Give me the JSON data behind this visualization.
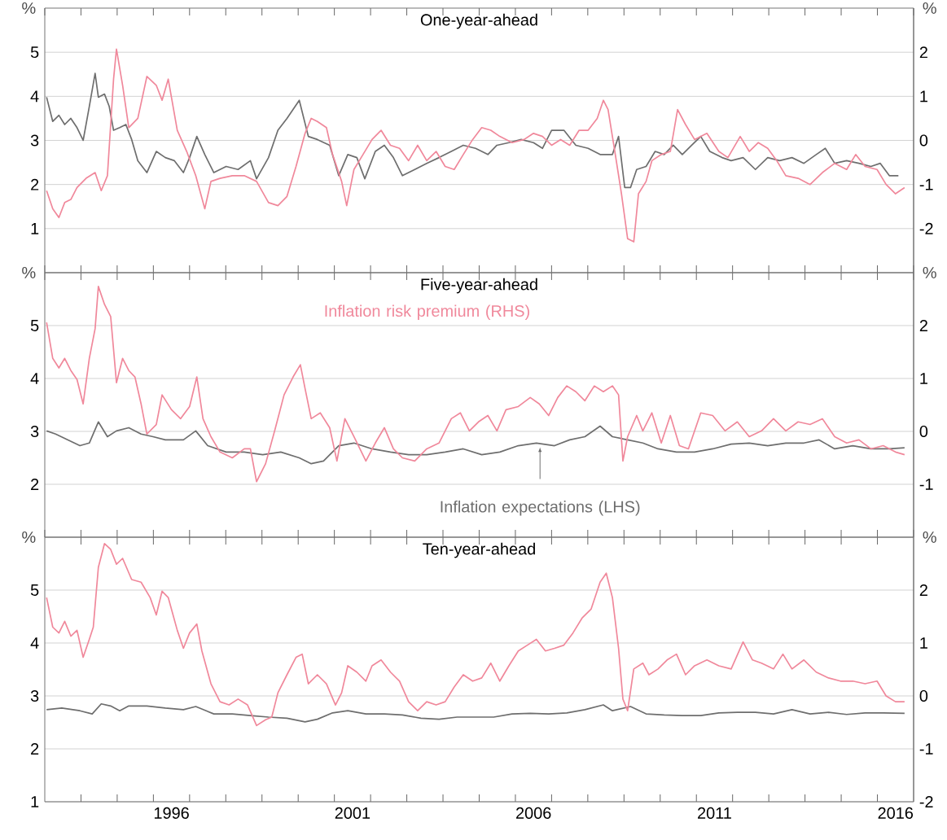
{
  "chart_data": [
    {
      "type": "line",
      "title": "One-year-ahead",
      "ylabel": "%",
      "y2label": "%",
      "xlim": [
        1993,
        2017
      ],
      "ylim": [
        0,
        6
      ],
      "yticks": [
        1,
        2,
        3,
        4,
        5
      ],
      "y2lim": [
        -3,
        3
      ],
      "y2ticks": [
        -2,
        -1,
        0,
        1,
        2
      ],
      "grid": "y",
      "tick_labels": "y",
      "series": [
        {
          "color": "#6e6e6e",
          "axis": "y",
          "x": [
            1993.05,
            1993.22,
            1993.39,
            1993.55,
            1993.72,
            1993.89,
            1994.06,
            1994.23,
            1994.39,
            1994.48,
            1994.65,
            1994.78,
            1994.9,
            1995.07,
            1995.24,
            1995.4,
            1995.57,
            1995.82,
            1996.08,
            1996.33,
            1996.58,
            1996.83,
            1997.0,
            1997.2,
            1997.42,
            1997.67,
            1998.01,
            1998.34,
            1998.68,
            1998.85,
            1999.18,
            1999.44,
            1999.69,
            2000.03,
            2000.28,
            2000.53,
            2000.87,
            2001.12,
            2001.37,
            2001.62,
            2001.84,
            2002.13,
            2002.38,
            2002.63,
            2002.88,
            2003.22,
            2003.55,
            2003.89,
            2004.23,
            2004.56,
            2004.9,
            2005.24,
            2005.49,
            2005.82,
            2006.16,
            2006.5,
            2006.75,
            2007.0,
            2007.34,
            2007.67,
            2008.01,
            2008.34,
            2008.68,
            2008.85,
            2009.02,
            2009.18,
            2009.35,
            2009.61,
            2009.86,
            2010.11,
            2010.36,
            2010.61,
            2010.87,
            2011.12,
            2011.37,
            2011.71,
            2011.96,
            2012.29,
            2012.63,
            2012.97,
            2013.3,
            2013.64,
            2013.97,
            2014.31,
            2014.56,
            2014.82,
            2015.15,
            2015.49,
            2015.82,
            2016.08,
            2016.33,
            2016.58
          ],
          "values": [
            3.98,
            3.43,
            3.57,
            3.36,
            3.5,
            3.29,
            3.0,
            3.77,
            4.52,
            3.98,
            4.05,
            3.77,
            3.23,
            3.29,
            3.36,
            3.02,
            2.54,
            2.27,
            2.75,
            2.61,
            2.54,
            2.27,
            2.61,
            3.09,
            2.68,
            2.27,
            2.41,
            2.34,
            2.54,
            2.13,
            2.61,
            3.23,
            3.5,
            3.91,
            3.09,
            3.02,
            2.89,
            2.2,
            2.68,
            2.61,
            2.13,
            2.75,
            2.89,
            2.61,
            2.2,
            2.34,
            2.48,
            2.61,
            2.75,
            2.89,
            2.82,
            2.68,
            2.89,
            2.95,
            3.02,
            2.95,
            2.82,
            3.23,
            3.23,
            2.89,
            2.82,
            2.68,
            2.68,
            3.09,
            1.93,
            1.93,
            2.34,
            2.41,
            2.75,
            2.68,
            2.89,
            2.68,
            2.89,
            3.09,
            2.75,
            2.61,
            2.54,
            2.61,
            2.34,
            2.61,
            2.54,
            2.61,
            2.48,
            2.68,
            2.82,
            2.48,
            2.54,
            2.48,
            2.41,
            2.48,
            2.2,
            2.2
          ]
        },
        {
          "color": "#f0889b",
          "axis": "y2",
          "x": [
            1993.05,
            1993.22,
            1993.39,
            1993.55,
            1993.72,
            1993.89,
            1994.14,
            1994.39,
            1994.56,
            1994.73,
            1994.9,
            1994.98,
            1995.15,
            1995.32,
            1995.57,
            1995.82,
            1996.08,
            1996.24,
            1996.41,
            1996.66,
            1996.92,
            1997.17,
            1997.42,
            1997.59,
            1997.84,
            1998.18,
            1998.51,
            1998.85,
            1999.18,
            1999.44,
            1999.69,
            1999.94,
            2000.19,
            2000.36,
            2000.53,
            2000.78,
            2000.95,
            2001.2,
            2001.34,
            2001.54,
            2001.79,
            2002.04,
            2002.29,
            2002.55,
            2002.8,
            2003.05,
            2003.3,
            2003.55,
            2003.81,
            2004.06,
            2004.31,
            2004.56,
            2004.82,
            2005.07,
            2005.32,
            2005.57,
            2005.91,
            2006.24,
            2006.5,
            2006.75,
            2007.0,
            2007.25,
            2007.5,
            2007.76,
            2008.01,
            2008.26,
            2008.43,
            2008.56,
            2008.76,
            2008.93,
            2009.1,
            2009.27,
            2009.4,
            2009.61,
            2009.77,
            2010.03,
            2010.28,
            2010.48,
            2010.7,
            2010.95,
            2011.29,
            2011.62,
            2011.87,
            2012.21,
            2012.46,
            2012.71,
            2012.97,
            2013.22,
            2013.47,
            2013.81,
            2014.14,
            2014.48,
            2014.82,
            2015.15,
            2015.4,
            2015.66,
            2015.99,
            2016.24,
            2016.5,
            2016.75
          ],
          "values": [
            -1.14,
            -1.55,
            -1.75,
            -1.41,
            -1.34,
            -1.07,
            -0.86,
            -0.73,
            -1.14,
            -0.8,
            1.39,
            2.07,
            1.25,
            0.29,
            0.5,
            1.45,
            1.25,
            0.91,
            1.39,
            0.23,
            -0.25,
            -0.8,
            -1.55,
            -0.93,
            -0.86,
            -0.8,
            -0.8,
            -0.93,
            -1.41,
            -1.48,
            -1.27,
            -0.59,
            0.16,
            0.5,
            0.43,
            0.29,
            -0.32,
            -0.93,
            -1.48,
            -0.66,
            -0.32,
            0.02,
            0.23,
            -0.11,
            -0.18,
            -0.46,
            -0.11,
            -0.46,
            -0.25,
            -0.59,
            -0.66,
            -0.32,
            0.02,
            0.29,
            0.23,
            0.09,
            -0.05,
            0.02,
            0.16,
            0.09,
            -0.11,
            0.02,
            -0.11,
            0.23,
            0.23,
            0.5,
            0.91,
            0.7,
            -0.32,
            -1.21,
            -2.23,
            -2.3,
            -1.21,
            -0.93,
            -0.46,
            -0.32,
            -0.25,
            0.7,
            0.36,
            0.02,
            0.16,
            -0.25,
            -0.39,
            0.09,
            -0.25,
            -0.05,
            -0.18,
            -0.46,
            -0.8,
            -0.86,
            -1.0,
            -0.73,
            -0.52,
            -0.66,
            -0.32,
            -0.59,
            -0.66,
            -1.0,
            -1.21,
            -1.07
          ]
        }
      ]
    },
    {
      "type": "line",
      "title": "Five-year-ahead",
      "ylabel": "%",
      "y2label": "%",
      "xlim": [
        1993,
        2017
      ],
      "ylim": [
        1,
        6
      ],
      "yticks": [
        2,
        3,
        4,
        5
      ],
      "y2lim": [
        -2,
        3
      ],
      "y2ticks": [
        -1,
        0,
        1,
        2
      ],
      "grid": "y",
      "tick_labels": "y",
      "series": [
        {
          "name": "Inflation expectations (LHS)",
          "color": "#6e6e6e",
          "axis": "y",
          "x": [
            1993.05,
            1993.3,
            1993.64,
            1993.97,
            1994.23,
            1994.48,
            1994.73,
            1994.98,
            1995.32,
            1995.66,
            1995.99,
            1996.33,
            1996.83,
            1997.17,
            1997.5,
            1998.01,
            1998.51,
            1999.02,
            1999.52,
            2000.03,
            2000.36,
            2000.7,
            2001.12,
            2001.54,
            2002.04,
            2002.55,
            2003.05,
            2003.55,
            2004.06,
            2004.56,
            2005.07,
            2005.57,
            2006.08,
            2006.58,
            2007.08,
            2007.5,
            2007.92,
            2008.34,
            2008.68,
            2009.1,
            2009.52,
            2009.94,
            2010.45,
            2010.95,
            2011.45,
            2011.96,
            2012.46,
            2012.97,
            2013.47,
            2013.97,
            2014.39,
            2014.82,
            2015.32,
            2015.82,
            2016.33,
            2016.75
          ],
          "values": [
            3.01,
            2.95,
            2.84,
            2.73,
            2.78,
            3.18,
            2.9,
            3.01,
            3.07,
            2.95,
            2.9,
            2.84,
            2.84,
            3.01,
            2.73,
            2.61,
            2.61,
            2.56,
            2.61,
            2.5,
            2.39,
            2.44,
            2.73,
            2.78,
            2.67,
            2.61,
            2.56,
            2.56,
            2.61,
            2.67,
            2.56,
            2.61,
            2.73,
            2.78,
            2.73,
            2.84,
            2.9,
            3.1,
            2.9,
            2.84,
            2.78,
            2.67,
            2.61,
            2.61,
            2.67,
            2.76,
            2.78,
            2.73,
            2.78,
            2.78,
            2.84,
            2.67,
            2.73,
            2.67,
            2.67,
            2.69
          ]
        },
        {
          "name": "Inflation risk premium (RHS)",
          "color": "#f0889b",
          "axis": "y2",
          "x": [
            1993.05,
            1993.22,
            1993.39,
            1993.55,
            1993.72,
            1993.89,
            1994.06,
            1994.23,
            1994.39,
            1994.48,
            1994.65,
            1994.82,
            1994.98,
            1995.15,
            1995.32,
            1995.49,
            1995.66,
            1995.82,
            1996.08,
            1996.24,
            1996.5,
            1996.75,
            1997.0,
            1997.2,
            1997.37,
            1997.59,
            1997.84,
            1998.18,
            1998.51,
            1998.68,
            1998.85,
            1999.1,
            1999.35,
            1999.61,
            1999.86,
            2000.06,
            2000.19,
            2000.36,
            2000.61,
            2000.87,
            2001.07,
            2001.29,
            2001.54,
            2001.87,
            2002.13,
            2002.38,
            2002.63,
            2002.88,
            2003.22,
            2003.55,
            2003.89,
            2004.23,
            2004.48,
            2004.73,
            2004.98,
            2005.24,
            2005.49,
            2005.74,
            2006.08,
            2006.41,
            2006.66,
            2006.92,
            2007.17,
            2007.42,
            2007.67,
            2007.92,
            2008.18,
            2008.43,
            2008.68,
            2008.85,
            2008.97,
            2009.1,
            2009.35,
            2009.52,
            2009.77,
            2010.03,
            2010.28,
            2010.53,
            2010.78,
            2011.12,
            2011.45,
            2011.79,
            2012.13,
            2012.46,
            2012.8,
            2013.13,
            2013.47,
            2013.81,
            2014.14,
            2014.48,
            2014.82,
            2015.15,
            2015.49,
            2015.82,
            2016.16,
            2016.5,
            2016.75
          ],
          "values": [
            2.06,
            1.38,
            1.2,
            1.38,
            1.15,
            0.98,
            0.52,
            1.38,
            1.94,
            2.74,
            2.4,
            2.17,
            0.92,
            1.38,
            1.15,
            1.03,
            0.52,
            -0.05,
            0.13,
            0.69,
            0.41,
            0.24,
            0.47,
            1.03,
            0.24,
            -0.1,
            -0.39,
            -0.5,
            -0.33,
            -0.33,
            -0.95,
            -0.61,
            0.01,
            0.69,
            1.03,
            1.26,
            0.81,
            0.24,
            0.35,
            0.07,
            -0.56,
            0.24,
            -0.1,
            -0.56,
            -0.22,
            0.07,
            -0.33,
            -0.5,
            -0.56,
            -0.33,
            -0.22,
            0.24,
            0.35,
            0.01,
            0.18,
            0.3,
            0.01,
            0.41,
            0.47,
            0.64,
            0.52,
            0.3,
            0.64,
            0.86,
            0.75,
            0.58,
            0.86,
            0.75,
            0.86,
            0.69,
            -0.56,
            -0.1,
            0.3,
            0.01,
            0.35,
            -0.22,
            0.3,
            -0.27,
            -0.33,
            0.35,
            0.3,
            0.01,
            0.18,
            -0.1,
            0.01,
            0.24,
            0.01,
            0.18,
            0.13,
            0.24,
            -0.1,
            -0.22,
            -0.16,
            -0.33,
            -0.27,
            -0.39,
            -0.44
          ]
        }
      ]
    },
    {
      "type": "line",
      "title": "Ten-year-ahead",
      "ylabel": "%",
      "y2label": "%",
      "xlim": [
        1993,
        2017
      ],
      "ylim": [
        1,
        6
      ],
      "yticks": [
        1,
        2,
        3,
        4,
        5
      ],
      "y2lim": [
        -2,
        3
      ],
      "y2ticks": [
        -2,
        -1,
        0,
        1,
        2
      ],
      "grid": "y",
      "xticks": [
        {
          "value": 1994,
          "label": null
        },
        {
          "value": 1995,
          "label": null
        },
        {
          "value": 1996,
          "label": null
        },
        {
          "value": 1996.5,
          "label": "1996"
        },
        {
          "value": 1997,
          "label": null
        },
        {
          "value": 1998,
          "label": null
        },
        {
          "value": 1999,
          "label": null
        },
        {
          "value": 2000,
          "label": null
        },
        {
          "value": 2001,
          "label": null
        },
        {
          "value": 2001.5,
          "label": "2001"
        },
        {
          "value": 2002,
          "label": null
        },
        {
          "value": 2003,
          "label": null
        },
        {
          "value": 2004,
          "label": null
        },
        {
          "value": 2005,
          "label": null
        },
        {
          "value": 2006,
          "label": null
        },
        {
          "value": 2006.5,
          "label": "2006"
        },
        {
          "value": 2007,
          "label": null
        },
        {
          "value": 2008,
          "label": null
        },
        {
          "value": 2009,
          "label": null
        },
        {
          "value": 2010,
          "label": null
        },
        {
          "value": 2011,
          "label": null
        },
        {
          "value": 2011.5,
          "label": "2011"
        },
        {
          "value": 2012,
          "label": null
        },
        {
          "value": 2013,
          "label": null
        },
        {
          "value": 2014,
          "label": null
        },
        {
          "value": 2015,
          "label": null
        },
        {
          "value": 2016,
          "label": null
        },
        {
          "value": 2016.5,
          "label": "2016"
        }
      ],
      "series": [
        {
          "color": "#6e6e6e",
          "axis": "y",
          "x": [
            1993.05,
            1993.47,
            1993.97,
            1994.31,
            1994.56,
            1994.82,
            1995.07,
            1995.32,
            1995.82,
            1996.33,
            1996.83,
            1997.17,
            1997.67,
            1998.18,
            1998.68,
            1999.18,
            1999.69,
            2000.19,
            2000.53,
            2000.95,
            2001.37,
            2001.87,
            2002.38,
            2002.88,
            2003.39,
            2003.89,
            2004.39,
            2004.9,
            2005.4,
            2005.91,
            2006.41,
            2006.92,
            2007.42,
            2007.92,
            2008.43,
            2008.68,
            2009.18,
            2009.61,
            2010.11,
            2010.61,
            2011.12,
            2011.62,
            2012.13,
            2012.63,
            2013.13,
            2013.64,
            2014.14,
            2014.65,
            2015.15,
            2015.66,
            2016.16,
            2016.75
          ],
          "values": [
            2.74,
            2.77,
            2.72,
            2.66,
            2.85,
            2.81,
            2.72,
            2.81,
            2.81,
            2.77,
            2.74,
            2.8,
            2.66,
            2.66,
            2.63,
            2.6,
            2.58,
            2.51,
            2.56,
            2.68,
            2.72,
            2.66,
            2.66,
            2.64,
            2.58,
            2.56,
            2.6,
            2.6,
            2.6,
            2.66,
            2.67,
            2.66,
            2.68,
            2.74,
            2.83,
            2.72,
            2.8,
            2.66,
            2.64,
            2.63,
            2.63,
            2.68,
            2.69,
            2.69,
            2.66,
            2.74,
            2.66,
            2.69,
            2.65,
            2.68,
            2.68,
            2.67
          ]
        },
        {
          "color": "#f0889b",
          "axis": "y2",
          "x": [
            1993.05,
            1993.22,
            1993.39,
            1993.55,
            1993.72,
            1993.89,
            1994.06,
            1994.23,
            1994.34,
            1994.48,
            1994.65,
            1994.82,
            1994.98,
            1995.15,
            1995.4,
            1995.66,
            1995.91,
            1996.08,
            1996.24,
            1996.41,
            1996.66,
            1996.83,
            1997.0,
            1997.2,
            1997.34,
            1997.59,
            1997.84,
            1998.09,
            1998.34,
            1998.6,
            1998.85,
            1999.1,
            1999.27,
            1999.44,
            1999.69,
            1999.94,
            2000.11,
            2000.28,
            2000.53,
            2000.78,
            2001.03,
            2001.2,
            2001.37,
            2001.62,
            2001.87,
            2002.04,
            2002.29,
            2002.55,
            2002.8,
            2003.05,
            2003.3,
            2003.55,
            2003.81,
            2004.06,
            2004.31,
            2004.56,
            2004.82,
            2005.07,
            2005.32,
            2005.57,
            2005.82,
            2006.08,
            2006.33,
            2006.58,
            2006.83,
            2007.08,
            2007.34,
            2007.59,
            2007.84,
            2008.09,
            2008.34,
            2008.51,
            2008.68,
            2008.85,
            2008.97,
            2009.1,
            2009.27,
            2009.52,
            2009.69,
            2009.94,
            2010.19,
            2010.45,
            2010.7,
            2010.95,
            2011.29,
            2011.62,
            2011.96,
            2012.29,
            2012.55,
            2012.8,
            2013.13,
            2013.39,
            2013.64,
            2013.97,
            2014.31,
            2014.65,
            2014.98,
            2015.32,
            2015.66,
            2015.99,
            2016.24,
            2016.5,
            2016.75
          ],
          "values": [
            1.86,
            1.3,
            1.19,
            1.41,
            1.13,
            1.24,
            0.73,
            1.07,
            1.3,
            2.43,
            2.88,
            2.77,
            2.49,
            2.6,
            2.2,
            2.15,
            1.86,
            1.53,
            1.98,
            1.86,
            1.24,
            0.9,
            1.19,
            1.36,
            0.85,
            0.23,
            -0.11,
            -0.17,
            -0.06,
            -0.17,
            -0.56,
            -0.45,
            -0.4,
            0.06,
            0.4,
            0.73,
            0.79,
            0.23,
            0.4,
            0.23,
            -0.17,
            0.06,
            0.57,
            0.45,
            0.28,
            0.57,
            0.68,
            0.45,
            0.28,
            -0.11,
            -0.28,
            -0.11,
            -0.17,
            -0.11,
            0.17,
            0.4,
            0.28,
            0.34,
            0.62,
            0.28,
            0.57,
            0.85,
            0.96,
            1.07,
            0.85,
            0.9,
            0.96,
            1.19,
            1.47,
            1.64,
            2.15,
            2.32,
            1.86,
            0.9,
            -0.06,
            -0.28,
            0.51,
            0.62,
            0.4,
            0.51,
            0.68,
            0.79,
            0.4,
            0.57,
            0.68,
            0.57,
            0.51,
            1.02,
            0.68,
            0.62,
            0.51,
            0.79,
            0.51,
            0.68,
            0.45,
            0.34,
            0.28,
            0.28,
            0.23,
            0.28,
            0.0,
            -0.11,
            -0.11
          ]
        }
      ]
    }
  ]
}
